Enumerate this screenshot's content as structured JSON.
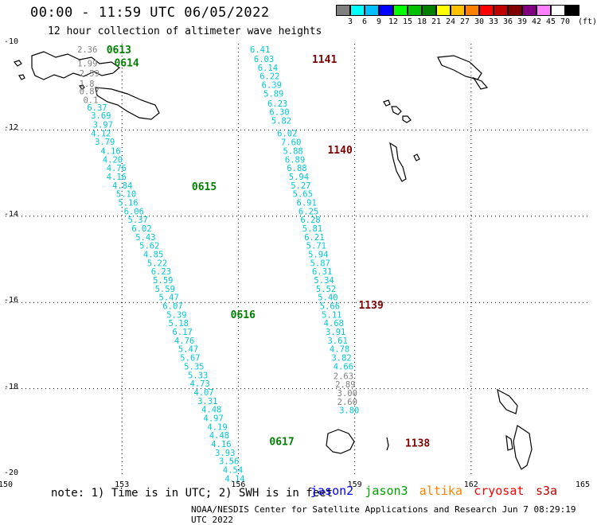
{
  "header": {
    "title": "00:00 - 11:59 UTC 06/05/2022",
    "subtitle": "12 hour collection of altimeter wave heights"
  },
  "legend": {
    "unit": "(ft)",
    "colors": [
      "#808080",
      "#00ffff",
      "#00bfff",
      "#0000ff",
      "#00ff00",
      "#00c000",
      "#008000",
      "#ffff00",
      "#ffc000",
      "#ff8000",
      "#ff0000",
      "#c00000",
      "#800000",
      "#800080",
      "#ff80ff",
      "#ffffff",
      "#000000"
    ],
    "labels": [
      "3",
      "6",
      "9",
      "12",
      "15",
      "18",
      "21",
      "24",
      "27",
      "30",
      "33",
      "36",
      "39",
      "42",
      "45",
      "70"
    ]
  },
  "axes": {
    "lat_labels": [
      "-10",
      "-12",
      "-14",
      "-16",
      "-18",
      "-20"
    ],
    "lon_labels": [
      "150",
      "153",
      "156",
      "159",
      "162",
      "165"
    ]
  },
  "map": {
    "tracks": [
      {
        "time": "0613",
        "time_lat": -10.13,
        "time_lon": 152.6,
        "color": "#008000"
      },
      {
        "time": "0614",
        "time_lat": -10.43,
        "time_lon": 152.8,
        "color": "#008000"
      },
      {
        "time": "0615",
        "time_lat": -13.3,
        "time_lon": 154.8,
        "color": "#008000"
      },
      {
        "time": "0616",
        "time_lat": -16.27,
        "time_lon": 155.8,
        "color": "#008000"
      },
      {
        "time": "0617",
        "time_lat": -19.22,
        "time_lon": 156.8,
        "color": "#008000"
      },
      {
        "time": "1141",
        "time_lat": -10.35,
        "time_lon": 157.9,
        "color": "#800000"
      },
      {
        "time": "1140",
        "time_lat": -12.45,
        "time_lon": 158.3,
        "color": "#800000"
      },
      {
        "time": "1139",
        "time_lat": -16.05,
        "time_lon": 159.1,
        "color": "#800000"
      },
      {
        "time": "1138",
        "time_lat": -19.25,
        "time_lon": 160.3,
        "color": "#800000"
      }
    ],
    "observations": [
      {
        "lat": -10.13,
        "lon": 151.85,
        "value": "2.36",
        "color": "#808080"
      },
      {
        "lat": -10.45,
        "lon": 151.85,
        "value": "1.99",
        "color": "#808080"
      },
      {
        "lat": -10.68,
        "lon": 151.9,
        "value": "2.59",
        "color": "#808080"
      },
      {
        "lat": -10.92,
        "lon": 151.9,
        "value": "1.8",
        "color": "#808080"
      },
      {
        "lat": -11.1,
        "lon": 151.9,
        "value": "0.87",
        "color": "#808080"
      },
      {
        "lat": -11.3,
        "lon": 152.0,
        "value": "0.1",
        "color": "#808080"
      },
      {
        "lat": -11.48,
        "lon": 152.1,
        "value": "6.37",
        "color": "#00c8d8"
      },
      {
        "lat": -11.66,
        "lon": 152.2,
        "value": "3.69",
        "color": "#00c8d8"
      },
      {
        "lat": -11.87,
        "lon": 152.25,
        "value": "3.97",
        "color": "#00c8d8"
      },
      {
        "lat": -12.08,
        "lon": 152.2,
        "value": "4.12",
        "color": "#00c8d8"
      },
      {
        "lat": -12.27,
        "lon": 152.3,
        "value": "3.79",
        "color": "#00c8d8"
      },
      {
        "lat": -12.48,
        "lon": 152.45,
        "value": "4.16",
        "color": "#00c8d8"
      },
      {
        "lat": -12.68,
        "lon": 152.5,
        "value": "4.20",
        "color": "#00c8d8"
      },
      {
        "lat": -12.88,
        "lon": 152.6,
        "value": "4.76",
        "color": "#00c8d8"
      },
      {
        "lat": -13.08,
        "lon": 152.6,
        "value": "4.16",
        "color": "#00c8d8"
      },
      {
        "lat": -13.28,
        "lon": 152.75,
        "value": "4.84",
        "color": "#00c8d8"
      },
      {
        "lat": -13.48,
        "lon": 152.85,
        "value": "5.10",
        "color": "#00c8d8"
      },
      {
        "lat": -13.68,
        "lon": 152.9,
        "value": "5.16",
        "color": "#00c8d8"
      },
      {
        "lat": -13.88,
        "lon": 153.05,
        "value": "6.06",
        "color": "#00c8d8"
      },
      {
        "lat": -14.08,
        "lon": 153.15,
        "value": "5.37",
        "color": "#00c8d8"
      },
      {
        "lat": -14.28,
        "lon": 153.25,
        "value": "6.02",
        "color": "#00c8d8"
      },
      {
        "lat": -14.48,
        "lon": 153.35,
        "value": "5.43",
        "color": "#00c8d8"
      },
      {
        "lat": -14.68,
        "lon": 153.45,
        "value": "5.62",
        "color": "#00c8d8"
      },
      {
        "lat": -14.88,
        "lon": 153.55,
        "value": "4.85",
        "color": "#00c8d8"
      },
      {
        "lat": -15.08,
        "lon": 153.65,
        "value": "5.22",
        "color": "#00c8d8"
      },
      {
        "lat": -15.28,
        "lon": 153.75,
        "value": "6.23",
        "color": "#00c8d8"
      },
      {
        "lat": -15.48,
        "lon": 153.8,
        "value": "5.59",
        "color": "#00c8d8"
      },
      {
        "lat": -15.68,
        "lon": 153.85,
        "value": "5.59",
        "color": "#00c8d8"
      },
      {
        "lat": -15.88,
        "lon": 153.95,
        "value": "5.47",
        "color": "#00c8d8"
      },
      {
        "lat": -16.08,
        "lon": 154.05,
        "value": "6.07",
        "color": "#00c8d8"
      },
      {
        "lat": -16.28,
        "lon": 154.15,
        "value": "5.39",
        "color": "#00c8d8"
      },
      {
        "lat": -16.48,
        "lon": 154.2,
        "value": "5.18",
        "color": "#00c8d8"
      },
      {
        "lat": -16.68,
        "lon": 154.3,
        "value": "6.17",
        "color": "#00c8d8"
      },
      {
        "lat": -16.88,
        "lon": 154.35,
        "value": "4.76",
        "color": "#00c8d8"
      },
      {
        "lat": -17.08,
        "lon": 154.45,
        "value": "5.47",
        "color": "#00c8d8"
      },
      {
        "lat": -17.28,
        "lon": 154.5,
        "value": "5.67",
        "color": "#00c8d8"
      },
      {
        "lat": -17.48,
        "lon": 154.6,
        "value": "5.35",
        "color": "#00c8d8"
      },
      {
        "lat": -17.68,
        "lon": 154.7,
        "value": "5.33",
        "color": "#00c8d8"
      },
      {
        "lat": -17.88,
        "lon": 154.75,
        "value": "4.73",
        "color": "#00c8d8"
      },
      {
        "lat": -18.08,
        "lon": 154.85,
        "value": "4.07",
        "color": "#00c8d8"
      },
      {
        "lat": -18.28,
        "lon": 154.95,
        "value": "3.31",
        "color": "#00c8d8"
      },
      {
        "lat": -18.48,
        "lon": 155.05,
        "value": "4.48",
        "color": "#00c8d8"
      },
      {
        "lat": -18.68,
        "lon": 155.1,
        "value": "4.97",
        "color": "#00c8d8"
      },
      {
        "lat": -18.88,
        "lon": 155.2,
        "value": "4.19",
        "color": "#00c8d8"
      },
      {
        "lat": -19.08,
        "lon": 155.25,
        "value": "4.48",
        "color": "#00c8d8"
      },
      {
        "lat": -19.28,
        "lon": 155.3,
        "value": "4.16",
        "color": "#00c8d8"
      },
      {
        "lat": -19.48,
        "lon": 155.4,
        "value": "3.93",
        "color": "#00c8d8"
      },
      {
        "lat": -19.68,
        "lon": 155.5,
        "value": "3.56",
        "color": "#00c8d8"
      },
      {
        "lat": -19.88,
        "lon": 155.6,
        "value": "4.54",
        "color": "#00c8d8"
      },
      {
        "lat": -20.08,
        "lon": 155.65,
        "value": "4.14",
        "color": "#00c8d8"
      },
      {
        "lat": -10.13,
        "lon": 156.3,
        "value": "6.41",
        "color": "#00c8d8"
      },
      {
        "lat": -10.35,
        "lon": 156.4,
        "value": "6.03",
        "color": "#00c8d8"
      },
      {
        "lat": -10.55,
        "lon": 156.5,
        "value": "6.14",
        "color": "#00c8d8"
      },
      {
        "lat": -10.75,
        "lon": 156.55,
        "value": "6.22",
        "color": "#00c8d8"
      },
      {
        "lat": -10.95,
        "lon": 156.6,
        "value": "6.39",
        "color": "#00c8d8"
      },
      {
        "lat": -11.15,
        "lon": 156.65,
        "value": "5.89",
        "color": "#00c8d8"
      },
      {
        "lat": -11.38,
        "lon": 156.75,
        "value": "6.23",
        "color": "#00c8d8"
      },
      {
        "lat": -11.58,
        "lon": 156.8,
        "value": "6.30",
        "color": "#00c8d8"
      },
      {
        "lat": -11.78,
        "lon": 156.85,
        "value": "5.82",
        "color": "#00c8d8"
      },
      {
        "lat": -12.08,
        "lon": 157.0,
        "value": "6.02",
        "color": "#00c8d8"
      },
      {
        "lat": -12.28,
        "lon": 157.1,
        "value": "7.60",
        "color": "#00c8d8"
      },
      {
        "lat": -12.48,
        "lon": 157.15,
        "value": "5.88",
        "color": "#00c8d8"
      },
      {
        "lat": -12.68,
        "lon": 157.2,
        "value": "6.89",
        "color": "#00c8d8"
      },
      {
        "lat": -12.88,
        "lon": 157.25,
        "value": "6.88",
        "color": "#00c8d8"
      },
      {
        "lat": -13.08,
        "lon": 157.3,
        "value": "5.94",
        "color": "#00c8d8"
      },
      {
        "lat": -13.28,
        "lon": 157.35,
        "value": "5.27",
        "color": "#00c8d8"
      },
      {
        "lat": -13.48,
        "lon": 157.4,
        "value": "5.65",
        "color": "#00c8d8"
      },
      {
        "lat": -13.68,
        "lon": 157.5,
        "value": "6.91",
        "color": "#00c8d8"
      },
      {
        "lat": -13.88,
        "lon": 157.55,
        "value": "6.25",
        "color": "#00c8d8"
      },
      {
        "lat": -14.08,
        "lon": 157.6,
        "value": "6.28",
        "color": "#00c8d8"
      },
      {
        "lat": -14.28,
        "lon": 157.65,
        "value": "5.81",
        "color": "#00c8d8"
      },
      {
        "lat": -14.48,
        "lon": 157.7,
        "value": "6.21",
        "color": "#00c8d8"
      },
      {
        "lat": -14.68,
        "lon": 157.75,
        "value": "5.71",
        "color": "#00c8d8"
      },
      {
        "lat": -14.88,
        "lon": 157.8,
        "value": "5.94",
        "color": "#00c8d8"
      },
      {
        "lat": -15.08,
        "lon": 157.85,
        "value": "5.87",
        "color": "#00c8d8"
      },
      {
        "lat": -15.28,
        "lon": 157.9,
        "value": "6.31",
        "color": "#00c8d8"
      },
      {
        "lat": -15.48,
        "lon": 157.95,
        "value": "5.34",
        "color": "#00c8d8"
      },
      {
        "lat": -15.68,
        "lon": 158.0,
        "value": "5.52",
        "color": "#00c8d8"
      },
      {
        "lat": -15.88,
        "lon": 158.05,
        "value": "5.40",
        "color": "#00c8d8"
      },
      {
        "lat": -16.08,
        "lon": 158.1,
        "value": "5.66",
        "color": "#00c8d8"
      },
      {
        "lat": -16.28,
        "lon": 158.15,
        "value": "5.11",
        "color": "#00c8d8"
      },
      {
        "lat": -16.48,
        "lon": 158.2,
        "value": "4.68",
        "color": "#00c8d8"
      },
      {
        "lat": -16.68,
        "lon": 158.25,
        "value": "3.91",
        "color": "#00c8d8"
      },
      {
        "lat": -16.88,
        "lon": 158.3,
        "value": "3.61",
        "color": "#00c8d8"
      },
      {
        "lat": -17.08,
        "lon": 158.35,
        "value": "4.78",
        "color": "#00c8d8"
      },
      {
        "lat": -17.28,
        "lon": 158.4,
        "value": "3.82",
        "color": "#00c8d8"
      },
      {
        "lat": -17.48,
        "lon": 158.45,
        "value": "4.66",
        "color": "#00c8d8"
      },
      {
        "lat": -17.7,
        "lon": 158.45,
        "value": "2.63",
        "color": "#808080"
      },
      {
        "lat": -17.9,
        "lon": 158.5,
        "value": "2.89",
        "color": "#808080"
      },
      {
        "lat": -18.1,
        "lon": 158.55,
        "value": "3.00",
        "color": "#808080"
      },
      {
        "lat": -18.3,
        "lon": 158.55,
        "value": "2.60",
        "color": "#808080"
      },
      {
        "lat": -18.5,
        "lon": 158.6,
        "value": "3.80",
        "color": "#00c8d8"
      }
    ]
  },
  "footer": {
    "note": "note: 1) Time is in UTC; 2) SWH is in feet",
    "satellites": [
      {
        "name": "jason2",
        "color": "#0000ff"
      },
      {
        "name": "jason3",
        "color": "#00a000"
      },
      {
        "name": "altika",
        "color": "#ff8000"
      },
      {
        "name": "cryosat",
        "color": "#ff0000"
      },
      {
        "name": "s3a",
        "color": "#c00000"
      }
    ],
    "credit": "NOAA/NESDIS Center for Satellite Applications and Research   Jun  7 08:29:19 UTC 2022"
  }
}
